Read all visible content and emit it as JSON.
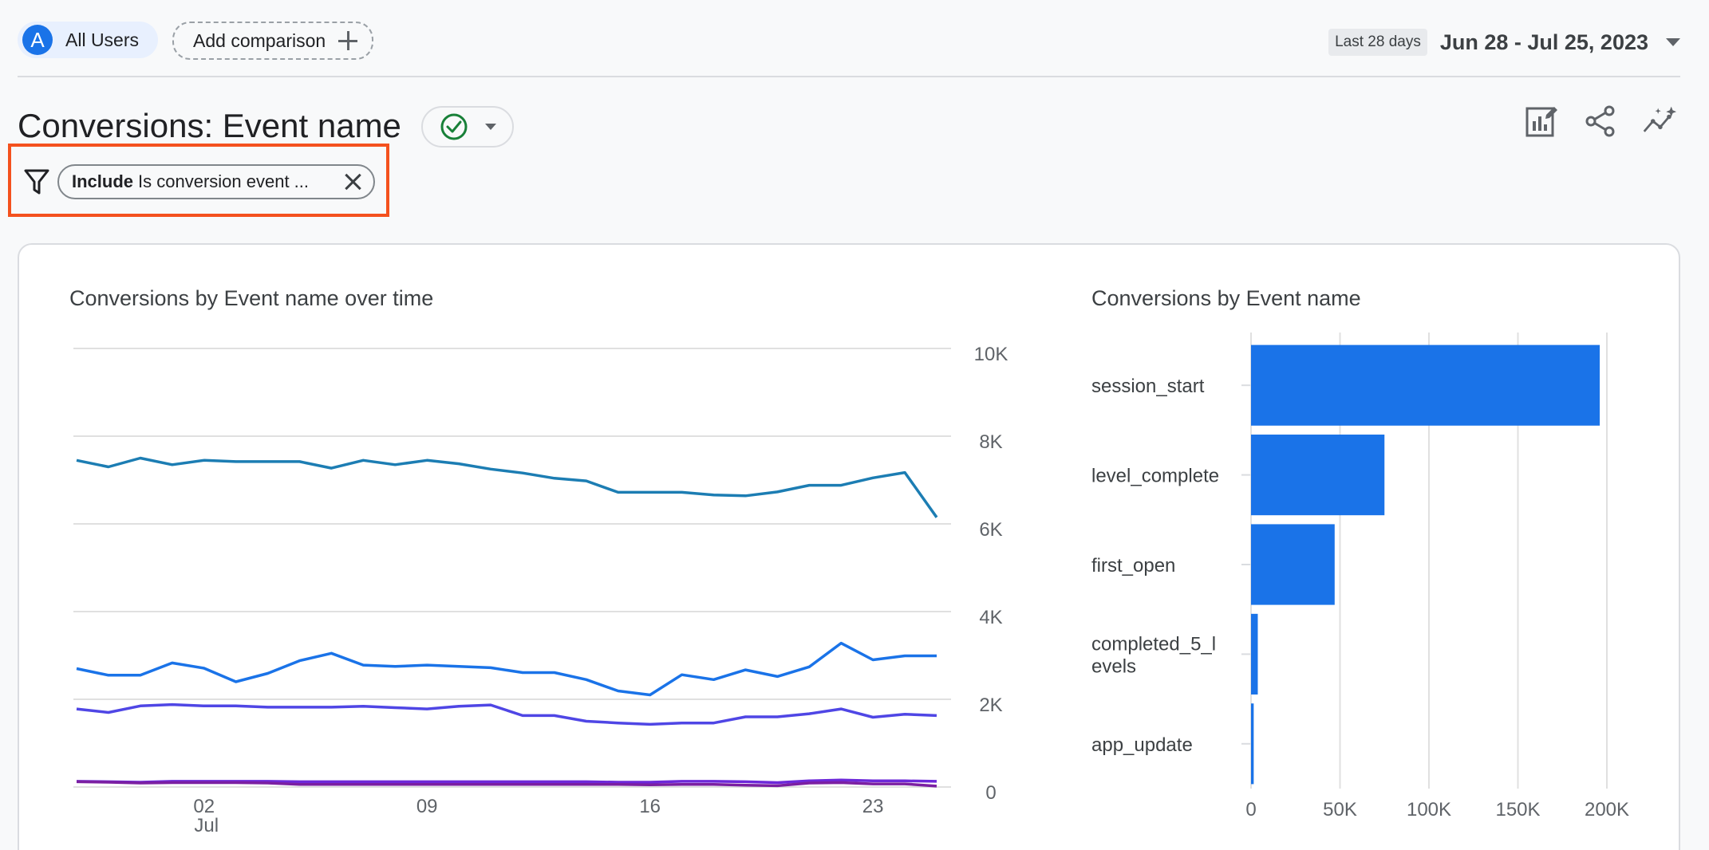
{
  "topbar": {
    "segment": {
      "avatar_letter": "A",
      "label": "All Users"
    },
    "add_comparison_label": "Add comparison",
    "date_badge": "Last 28 days",
    "date_range": "Jun 28 - Jul 25, 2023"
  },
  "header": {
    "title": "Conversions: Event name",
    "status": "check-circle-icon",
    "actions": [
      "customize-report-icon",
      "share-icon",
      "insights-icon"
    ]
  },
  "filter": {
    "keyword": "Include",
    "text": "Is conversion event ..."
  },
  "colors": {
    "primary": "#1a73e8",
    "teal": "#1c7db3",
    "indigo": "#4f46e5",
    "violet": "#6d28d9",
    "purple": "#7b1fa2",
    "filter_highlight": "#f4511e",
    "success": "#188038"
  },
  "chart_data": [
    {
      "type": "line",
      "title": "Conversions by Event name over time",
      "xlabel": "",
      "ylabel": "",
      "ylim": [
        0,
        10000
      ],
      "y_ticks": [
        "0",
        "2K",
        "4K",
        "6K",
        "8K",
        "10K"
      ],
      "x_ticks": [
        {
          "day_index": 4,
          "label": "02",
          "sublabel": "Jul"
        },
        {
          "day_index": 11,
          "label": "09"
        },
        {
          "day_index": 18,
          "label": "16"
        },
        {
          "day_index": 25,
          "label": "23"
        }
      ],
      "x_start": "2023-06-28",
      "grid": true,
      "series": [
        {
          "color": "#1c7db3",
          "values": [
            7450,
            7300,
            7500,
            7350,
            7450,
            7420,
            7420,
            7420,
            7270,
            7450,
            7350,
            7450,
            7370,
            7250,
            7160,
            7040,
            6980,
            6720,
            6720,
            6720,
            6660,
            6640,
            6730,
            6880,
            6880,
            7050,
            7170,
            6150
          ]
        },
        {
          "color": "#1a73e8",
          "values": [
            2700,
            2550,
            2550,
            2830,
            2710,
            2400,
            2590,
            2880,
            3050,
            2780,
            2750,
            2780,
            2750,
            2720,
            2610,
            2610,
            2450,
            2190,
            2100,
            2560,
            2450,
            2670,
            2520,
            2740,
            3280,
            2900,
            2990,
            2990
          ]
        },
        {
          "color": "#4f46e5",
          "values": [
            1780,
            1700,
            1850,
            1880,
            1850,
            1850,
            1820,
            1820,
            1820,
            1840,
            1810,
            1780,
            1840,
            1870,
            1630,
            1630,
            1500,
            1460,
            1430,
            1460,
            1460,
            1600,
            1600,
            1670,
            1780,
            1590,
            1660,
            1630
          ]
        },
        {
          "color": "#6d28d9",
          "values": [
            130,
            120,
            110,
            130,
            130,
            130,
            130,
            120,
            120,
            120,
            120,
            120,
            120,
            120,
            120,
            120,
            120,
            110,
            110,
            130,
            130,
            120,
            100,
            140,
            160,
            140,
            140,
            130
          ]
        },
        {
          "color": "#7b1fa2",
          "values": [
            120,
            110,
            90,
            100,
            100,
            100,
            90,
            60,
            60,
            60,
            60,
            60,
            60,
            60,
            60,
            60,
            60,
            60,
            50,
            60,
            60,
            40,
            30,
            90,
            100,
            70,
            70,
            20
          ]
        }
      ]
    },
    {
      "type": "bar",
      "orientation": "horizontal",
      "title": "Conversions by Event name",
      "categories": [
        "session_start",
        "level_complete",
        "first_open",
        "completed_5_levels",
        "app_update"
      ],
      "category_lines": [
        [
          "session_start"
        ],
        [
          "level_complete"
        ],
        [
          "first_open"
        ],
        [
          "completed_5_l",
          "evels"
        ],
        [
          "app_update"
        ]
      ],
      "values": [
        196000,
        75000,
        47000,
        3800,
        1500
      ],
      "xlim": [
        0,
        200000
      ],
      "x_ticks": [
        "0",
        "50K",
        "100K",
        "150K",
        "200K"
      ],
      "color": "#1a73e8",
      "grid": true
    }
  ]
}
